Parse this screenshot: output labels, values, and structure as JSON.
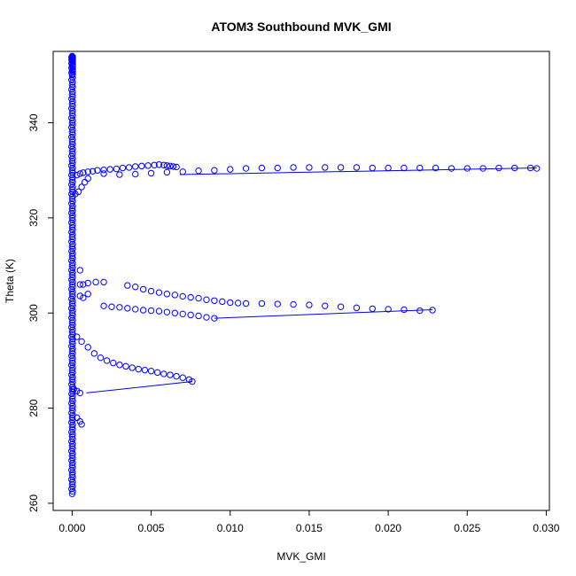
{
  "chart_data": {
    "type": "scatter",
    "title": "ATOM3 Southbound MVK_GMI",
    "xlabel": "MVK_GMI",
    "ylabel": "Theta (K)",
    "xlim": [
      -0.0012,
      0.0302
    ],
    "ylim": [
      258.5,
      355.0
    ],
    "xticks": [
      0.0,
      0.005,
      0.01,
      0.015,
      0.02,
      0.025,
      0.03
    ],
    "xtick_labels": [
      "0.000",
      "0.005",
      "0.010",
      "0.015",
      "0.020",
      "0.025",
      "0.030"
    ],
    "yticks": [
      260,
      280,
      300,
      320,
      340
    ],
    "ytick_labels": [
      "260",
      "280",
      "300",
      "320",
      "340"
    ],
    "marker": "open-circle",
    "color": "#0000ff",
    "grid": false,
    "legend": "none",
    "series": [
      {
        "values_desc": "baseline",
        "x": [
          0.0,
          0.0,
          0.0,
          0.0,
          0.0,
          0.0,
          0.0,
          0.0,
          0.0,
          0.0,
          0.0,
          0.0,
          0.0,
          0.0,
          0.0,
          0.0,
          0.0,
          0.0,
          0.0,
          0.0,
          0.0,
          0.0,
          0.0,
          0.0,
          0.0,
          0.0,
          0.0,
          0.0,
          0.0,
          0.0,
          0.0,
          0.0,
          0.0,
          0.0,
          0.0,
          0.0,
          0.0,
          0.0,
          0.0,
          0.0,
          0.0,
          0.0,
          0.0,
          0.0,
          0.0,
          0.0,
          0.0,
          0.0,
          0.0,
          0.0
        ],
        "y": [
          262,
          264,
          266,
          268,
          270,
          272,
          274,
          276,
          278,
          280,
          282,
          284,
          286,
          288,
          290,
          292,
          294,
          296,
          298,
          300,
          302,
          304,
          306,
          308,
          310,
          312,
          314,
          316,
          318,
          320,
          322,
          324,
          326,
          328,
          330,
          332,
          334,
          336,
          338,
          340,
          342,
          344,
          346,
          348,
          350,
          351,
          352,
          353,
          353.5,
          354
        ]
      },
      {
        "x": [
          0.0003,
          0.0005,
          0.0007,
          0.001,
          0.0013,
          0.0016,
          0.002,
          0.0024,
          0.0028,
          0.0032,
          0.0036,
          0.004,
          0.0044,
          0.0048,
          0.0052,
          0.0055,
          0.0058,
          0.006,
          0.0062,
          0.0064,
          0.0066
        ],
        "y": [
          329.0,
          329.3,
          329.5,
          329.7,
          329.8,
          330.0,
          330.1,
          330.2,
          330.3,
          330.5,
          330.6,
          330.8,
          330.9,
          331.0,
          331.1,
          331.2,
          331.1,
          331.0,
          330.9,
          330.8,
          330.7
        ]
      },
      {
        "x": [
          0.0002,
          0.0004,
          0.0006,
          0.0008,
          0.001
        ],
        "y": [
          325.0,
          325.5,
          326.5,
          327.5,
          328.3
        ]
      },
      {
        "x": [
          0.002,
          0.003,
          0.004,
          0.005,
          0.006,
          0.007,
          0.008,
          0.009,
          0.01,
          0.011,
          0.012,
          0.013,
          0.014,
          0.015,
          0.016,
          0.017,
          0.018,
          0.019,
          0.02,
          0.021,
          0.022,
          0.023,
          0.024,
          0.025,
          0.026,
          0.027,
          0.028,
          0.029,
          0.0294
        ],
        "y": [
          329.3,
          329.1,
          329.2,
          329.4,
          329.6,
          329.7,
          329.9,
          330.0,
          330.2,
          330.4,
          330.5,
          330.5,
          330.6,
          330.6,
          330.6,
          330.6,
          330.6,
          330.5,
          330.5,
          330.5,
          330.5,
          330.5,
          330.4,
          330.4,
          330.4,
          330.5,
          330.5,
          330.5,
          330.4
        ]
      },
      {
        "x": [
          0.0005,
          0.001,
          0.0015,
          0.002,
          0.0035,
          0.004,
          0.0045,
          0.005,
          0.0055,
          0.006,
          0.0065,
          0.007,
          0.0075,
          0.008,
          0.0085,
          0.009,
          0.0095,
          0.01,
          0.0105,
          0.011,
          0.012,
          0.013,
          0.014,
          0.015,
          0.016,
          0.017,
          0.018,
          0.019,
          0.02,
          0.021,
          0.022,
          0.0228
        ],
        "y": [
          306.0,
          306.3,
          306.5,
          306.5,
          305.8,
          305.5,
          305.0,
          304.6,
          304.3,
          304.0,
          303.8,
          303.5,
          303.3,
          303.1,
          302.8,
          302.6,
          302.4,
          302.2,
          302.1,
          302.0,
          302.0,
          301.9,
          301.8,
          301.7,
          301.5,
          301.3,
          301.1,
          300.9,
          300.8,
          300.7,
          300.5,
          300.6
        ]
      },
      {
        "x": [
          0.002,
          0.0025,
          0.003,
          0.0035,
          0.004,
          0.0045,
          0.005,
          0.0055,
          0.006,
          0.0065,
          0.007,
          0.0075,
          0.008,
          0.0085,
          0.009
        ],
        "y": [
          301.5,
          301.3,
          301.2,
          301.0,
          300.8,
          300.6,
          300.5,
          300.4,
          300.2,
          300.0,
          299.8,
          299.6,
          299.4,
          299.1,
          298.9
        ]
      },
      {
        "x": [
          0.0003,
          0.0006,
          0.001,
          0.0014,
          0.0018,
          0.0022,
          0.0026,
          0.003,
          0.0034,
          0.0038,
          0.0042,
          0.0046,
          0.005,
          0.0054,
          0.0058,
          0.0062,
          0.0066,
          0.007,
          0.0074,
          0.0076
        ],
        "y": [
          295.0,
          294.0,
          292.8,
          291.5,
          290.6,
          290.0,
          289.5,
          289.1,
          288.8,
          288.5,
          288.2,
          288.0,
          287.8,
          287.5,
          287.2,
          287.0,
          286.7,
          286.4,
          286.0,
          285.6
        ]
      },
      {
        "x": [
          0.0001,
          0.0003,
          0.0005,
          0.0003,
          0.0005,
          0.0006
        ],
        "y": [
          284.0,
          283.6,
          283.2,
          278.0,
          277.2,
          276.6
        ]
      },
      {
        "x": [
          0.0005,
          0.0007,
          0.001,
          0.0005,
          0.0007
        ],
        "y": [
          309.0,
          306.0,
          304.0,
          303.6,
          303.2
        ]
      }
    ],
    "lines": [
      {
        "x": [
          0.0009,
          0.0076
        ],
        "y": [
          283.2,
          285.6
        ]
      },
      {
        "x": [
          0.009,
          0.0228
        ],
        "y": [
          298.9,
          300.7
        ]
      },
      {
        "x": [
          0.0068,
          0.0294
        ],
        "y": [
          329.1,
          330.5
        ]
      }
    ]
  }
}
